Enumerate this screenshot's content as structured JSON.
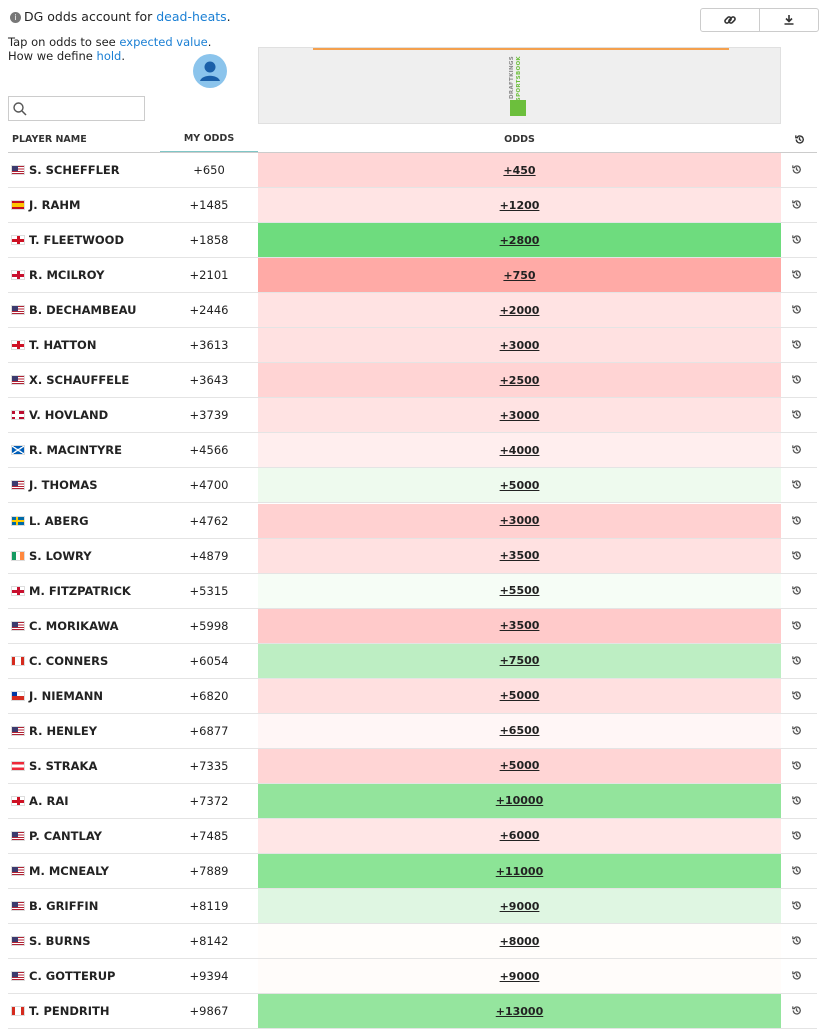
{
  "header": {
    "info_text": "DG odds account for",
    "info_link": "dead-heats",
    "info_end": ".",
    "tap_text": "Tap on odds to see",
    "tap_link": "expected value",
    "tap_end": ".",
    "hold_text": "How we define",
    "hold_link": "hold",
    "hold_end": "."
  },
  "book": {
    "logo_top": "DRAFTKINGS",
    "logo_bottom": "SPORTSBOOK"
  },
  "table": {
    "columns": [
      "PLAYER NAME",
      "MY ODDS",
      "ODDS"
    ],
    "rows": [
      {
        "name": "S. SCHEFFLER",
        "my_odds": "+650",
        "odds": "+450",
        "color": "#ffd6d6"
      },
      {
        "name": "J. RAHM",
        "my_odds": "+1485",
        "odds": "+1200",
        "color": "#ffe4e4"
      },
      {
        "name": "T. FLEETWOOD",
        "my_odds": "+1858",
        "odds": "+2800",
        "color": "#6edc7e"
      },
      {
        "name": "R. MCILROY",
        "my_odds": "+2101",
        "odds": "+750",
        "color": "#ffaaa6"
      },
      {
        "name": "B. DECHAMBEAU",
        "my_odds": "+2446",
        "odds": "+2000",
        "color": "#ffe3e3"
      },
      {
        "name": "T. HATTON",
        "my_odds": "+3613",
        "odds": "+3000",
        "color": "#ffe1e1"
      },
      {
        "name": "X. SCHAUFFELE",
        "my_odds": "+3643",
        "odds": "+2500",
        "color": "#ffd4d4"
      },
      {
        "name": "V. HOVLAND",
        "my_odds": "+3739",
        "odds": "+3000",
        "color": "#ffe3e3"
      },
      {
        "name": "R. MACINTYRE",
        "my_odds": "+4566",
        "odds": "+4000",
        "color": "#ffeeee"
      },
      {
        "name": "J. THOMAS",
        "my_odds": "+4700",
        "odds": "+5000",
        "color": "#eefaee"
      },
      {
        "name": "L. ABERG",
        "my_odds": "+4762",
        "odds": "+3000",
        "color": "#ffd1d1"
      },
      {
        "name": "S. LOWRY",
        "my_odds": "+4879",
        "odds": "+3500",
        "color": "#ffe1e1"
      },
      {
        "name": "M. FITZPATRICK",
        "my_odds": "+5315",
        "odds": "+5500",
        "color": "#f6fdf6"
      },
      {
        "name": "C. MORIKAWA",
        "my_odds": "+5998",
        "odds": "+3500",
        "color": "#ffcaca"
      },
      {
        "name": "C. CONNERS",
        "my_odds": "+6054",
        "odds": "+7500",
        "color": "#bdeec3"
      },
      {
        "name": "J. NIEMANN",
        "my_odds": "+6820",
        "odds": "+5000",
        "color": "#ffe0e0"
      },
      {
        "name": "R. HENLEY",
        "my_odds": "+6877",
        "odds": "+6500",
        "color": "#fff6f6"
      },
      {
        "name": "S. STRAKA",
        "my_odds": "+7335",
        "odds": "+5000",
        "color": "#ffd5d5"
      },
      {
        "name": "A. RAI",
        "my_odds": "+7372",
        "odds": "+10000",
        "color": "#93e49c"
      },
      {
        "name": "P. CANTLAY",
        "my_odds": "+7485",
        "odds": "+6000",
        "color": "#ffe6e6"
      },
      {
        "name": "M. MCNEALY",
        "my_odds": "+7889",
        "odds": "+11000",
        "color": "#8ce496"
      },
      {
        "name": "B. GRIFFIN",
        "my_odds": "+8119",
        "odds": "+9000",
        "color": "#dff6e2"
      },
      {
        "name": "S. BURNS",
        "my_odds": "+8142",
        "odds": "+8000",
        "color": "#fffdfb"
      },
      {
        "name": "C. GOTTERUP",
        "my_odds": "+9394",
        "odds": "+9000",
        "color": "#fffcfa"
      },
      {
        "name": "T. PENDRITH",
        "my_odds": "+9867",
        "odds": "+13000",
        "color": "#95e59e"
      }
    ]
  }
}
